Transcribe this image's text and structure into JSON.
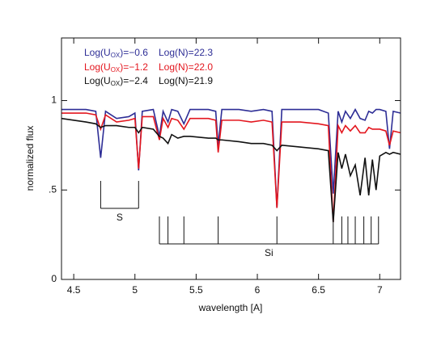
{
  "chart_data": {
    "type": "line",
    "x_label": "wavelength [A]",
    "y_label": "normalized flux",
    "xlim": [
      4.4,
      7.17
    ],
    "ylim": [
      0,
      1.35
    ],
    "xticks": [
      4.5,
      5,
      5.5,
      6,
      6.5,
      7
    ],
    "yticks": [
      0,
      {
        "value": 0.5,
        "label": ".5"
      },
      1
    ],
    "x": [
      4.4,
      4.6,
      4.68,
      4.72,
      4.76,
      4.85,
      4.95,
      5.0,
      5.03,
      5.06,
      5.15,
      5.2,
      5.23,
      5.27,
      5.3,
      5.35,
      5.4,
      5.45,
      5.6,
      5.66,
      5.68,
      5.71,
      5.85,
      5.95,
      6.05,
      6.12,
      6.16,
      6.2,
      6.35,
      6.5,
      6.58,
      6.62,
      6.66,
      6.69,
      6.72,
      6.76,
      6.8,
      6.84,
      6.88,
      6.91,
      6.94,
      6.97,
      7.0,
      7.05,
      7.08,
      7.11,
      7.17
    ],
    "series": [
      {
        "name": [
          "Log(U",
          "OX",
          ")=−0.6"
        ],
        "density": "Log(N)=22.3",
        "color": "#2e2e96",
        "values": [
          0.95,
          0.95,
          0.94,
          0.68,
          0.94,
          0.9,
          0.91,
          0.93,
          0.61,
          0.94,
          0.95,
          0.8,
          0.94,
          0.88,
          0.95,
          0.94,
          0.87,
          0.95,
          0.95,
          0.94,
          0.75,
          0.95,
          0.95,
          0.94,
          0.95,
          0.94,
          0.4,
          0.95,
          0.95,
          0.95,
          0.93,
          0.48,
          0.94,
          0.88,
          0.94,
          0.9,
          0.95,
          0.9,
          0.89,
          0.94,
          0.93,
          0.95,
          0.95,
          0.94,
          0.73,
          0.94,
          0.93
        ]
      },
      {
        "name": [
          "Log(U",
          "OX",
          ")=−1.2"
        ],
        "density": "Log(N)=22.0",
        "color": "#e3161e",
        "values": [
          0.93,
          0.93,
          0.92,
          0.84,
          0.92,
          0.88,
          0.89,
          0.9,
          0.62,
          0.91,
          0.91,
          0.78,
          0.9,
          0.85,
          0.9,
          0.89,
          0.84,
          0.9,
          0.9,
          0.89,
          0.71,
          0.89,
          0.89,
          0.88,
          0.89,
          0.88,
          0.4,
          0.88,
          0.88,
          0.87,
          0.86,
          0.32,
          0.86,
          0.82,
          0.86,
          0.83,
          0.86,
          0.82,
          0.82,
          0.85,
          0.84,
          0.84,
          0.84,
          0.83,
          0.75,
          0.83,
          0.82
        ]
      },
      {
        "name": [
          "Log(U",
          "OX",
          ")=−2.4"
        ],
        "density": "Log(N)=21.9",
        "color": "#111111",
        "values": [
          0.9,
          0.88,
          0.87,
          0.85,
          0.86,
          0.86,
          0.85,
          0.85,
          0.82,
          0.85,
          0.84,
          0.8,
          0.79,
          0.76,
          0.81,
          0.79,
          0.8,
          0.8,
          0.79,
          0.79,
          0.78,
          0.78,
          0.77,
          0.76,
          0.76,
          0.75,
          0.72,
          0.75,
          0.74,
          0.73,
          0.72,
          0.32,
          0.71,
          0.62,
          0.7,
          0.58,
          0.64,
          0.47,
          0.68,
          0.47,
          0.67,
          0.5,
          0.69,
          0.71,
          0.7,
          0.71,
          0.7
        ]
      }
    ],
    "annotations": [
      {
        "label": "S",
        "positions": [
          4.72,
          5.03
        ]
      },
      {
        "label": "Si",
        "positions": [
          5.2,
          5.27,
          5.4,
          5.68,
          6.16,
          6.62,
          6.69,
          6.74,
          6.8,
          6.87,
          6.93,
          6.99
        ]
      }
    ]
  }
}
